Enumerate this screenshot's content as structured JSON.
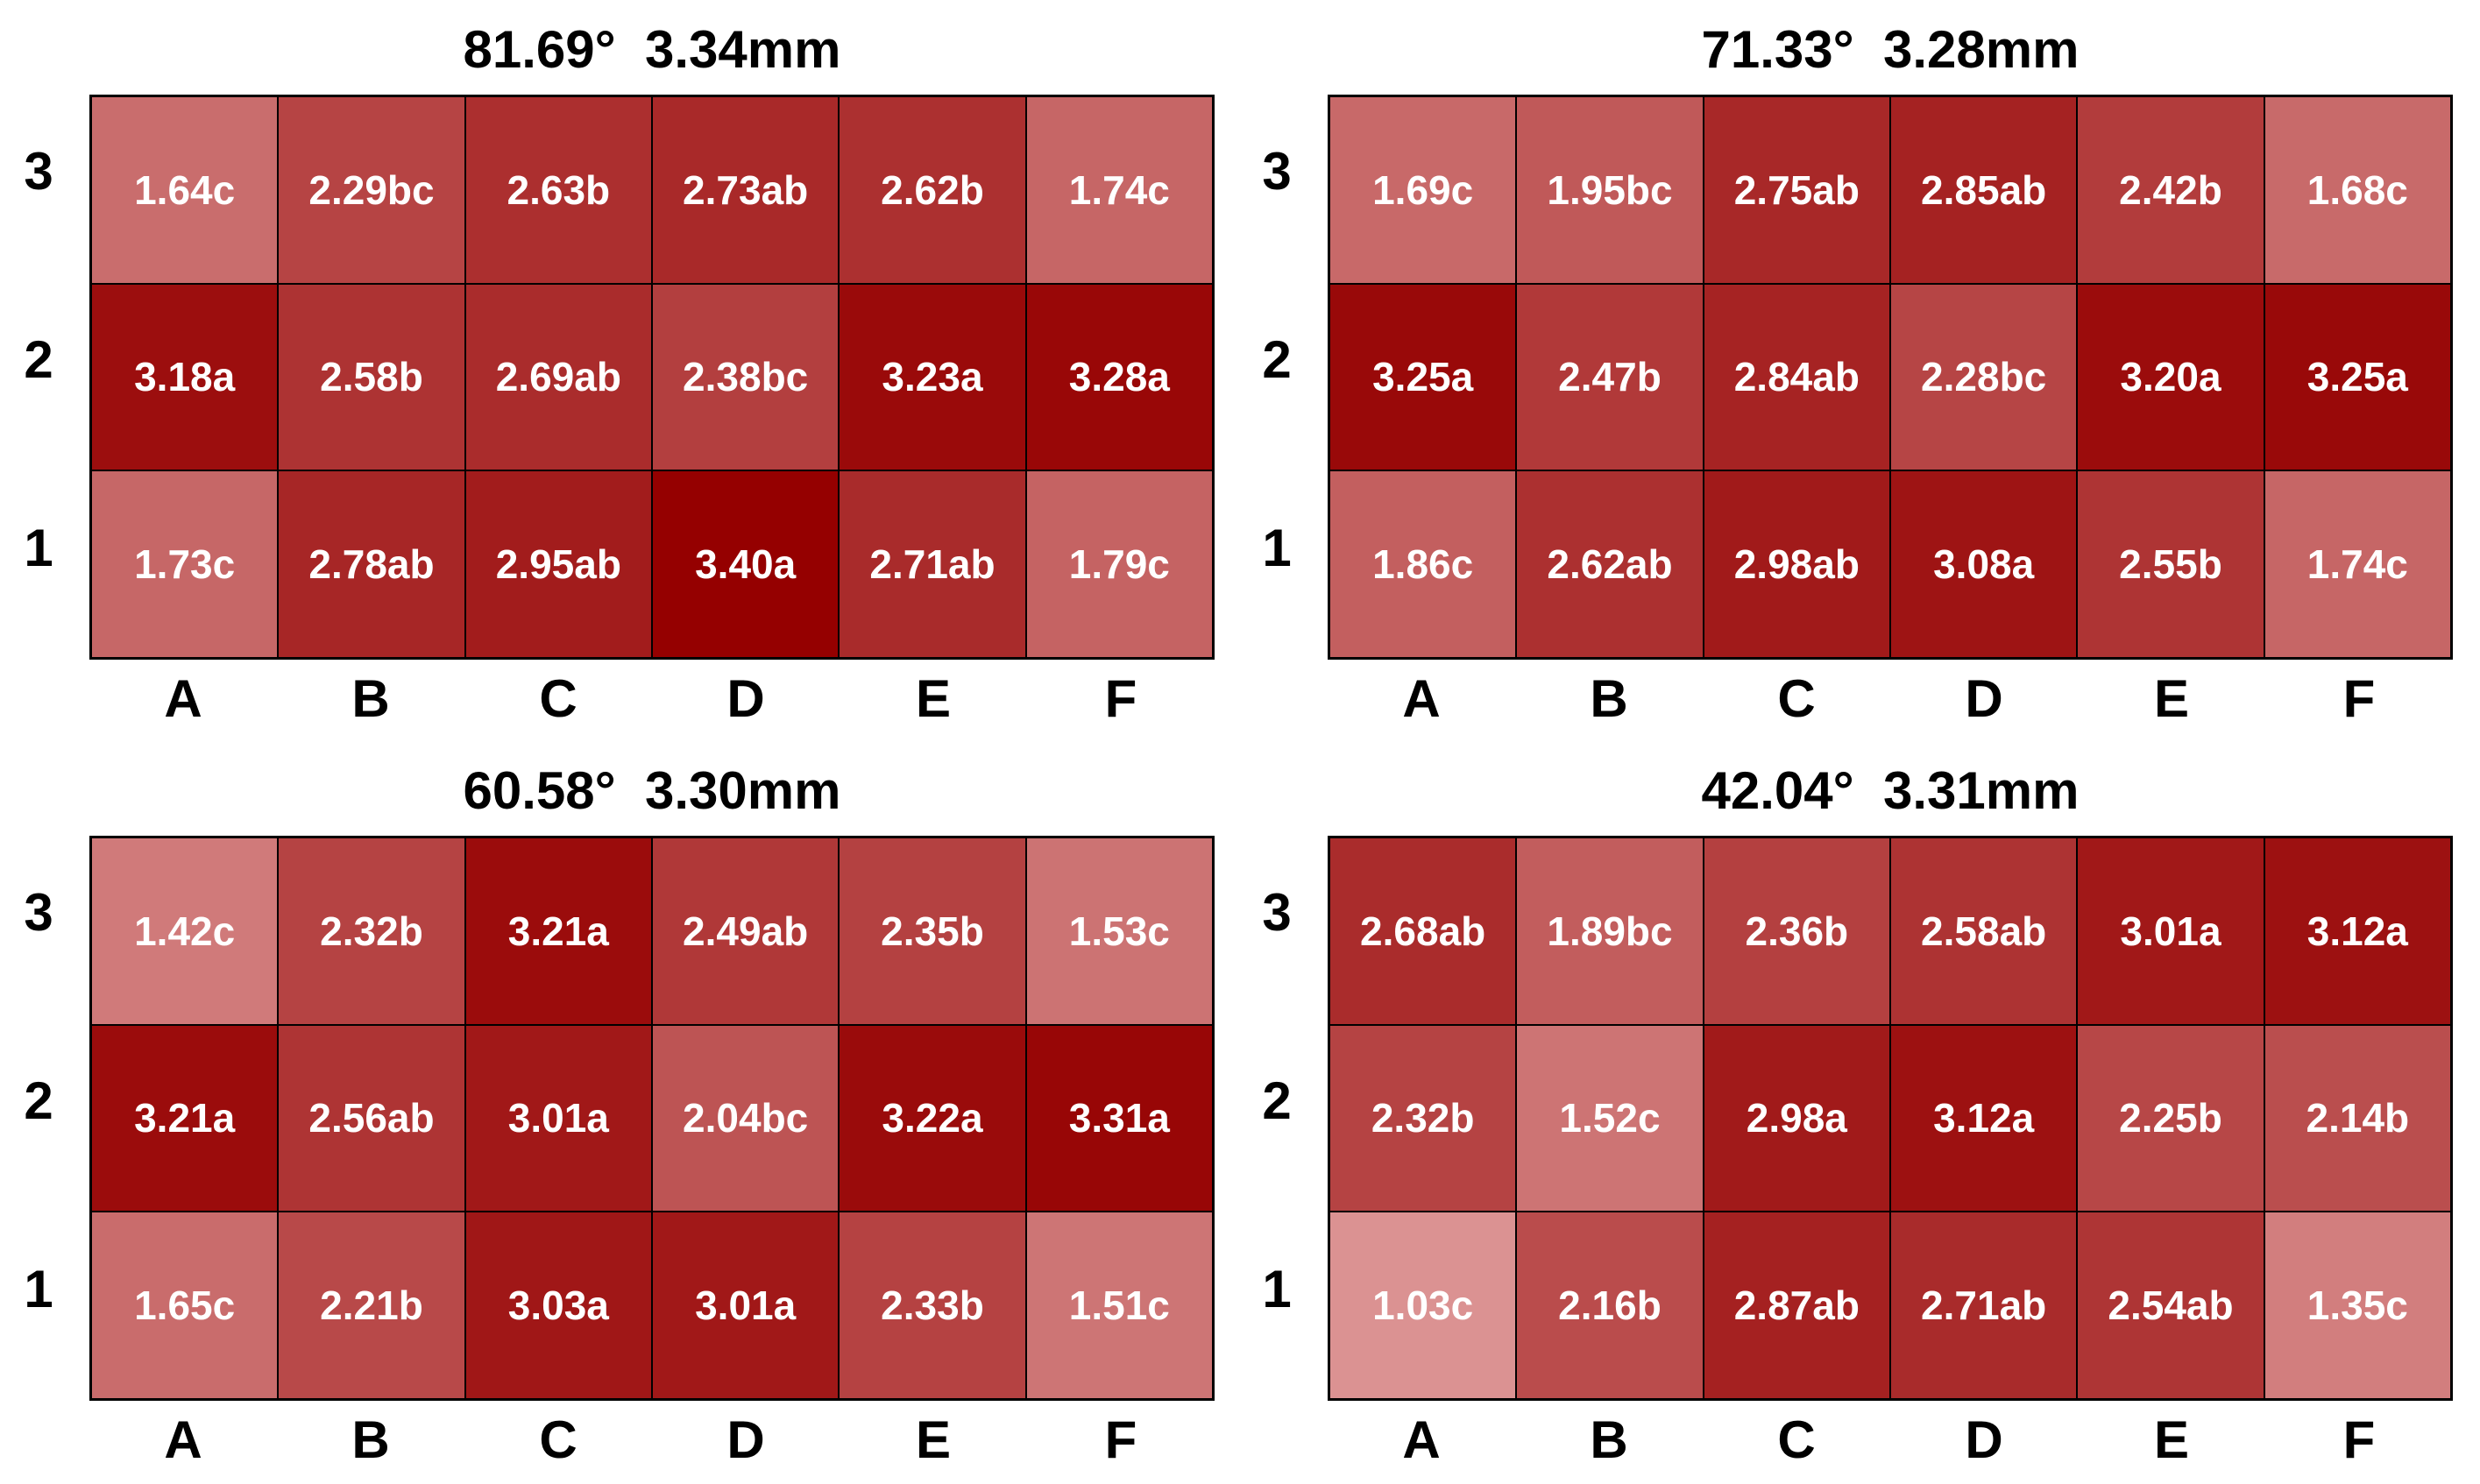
{
  "chart_data": [
    {
      "type": "heatmap",
      "title": "81.69°  3.34mm",
      "columns": [
        "A",
        "B",
        "C",
        "D",
        "E",
        "F"
      ],
      "rows": [
        "3",
        "2",
        "1"
      ],
      "values": [
        [
          1.64,
          2.29,
          2.63,
          2.73,
          2.62,
          1.74
        ],
        [
          3.18,
          2.58,
          2.69,
          2.38,
          3.23,
          3.28
        ],
        [
          1.73,
          2.78,
          2.95,
          3.4,
          2.71,
          1.79
        ]
      ],
      "labels": [
        [
          "1.64c",
          "2.29bc",
          "2.63b",
          "2.73ab",
          "2.62b",
          "1.74c"
        ],
        [
          "3.18a",
          "2.58b",
          "2.69ab",
          "2.38bc",
          "3.23a",
          "3.28a"
        ],
        [
          "1.73c",
          "2.78ab",
          "2.95ab",
          "3.40a",
          "2.71ab",
          "1.79c"
        ]
      ]
    },
    {
      "type": "heatmap",
      "title": "71.33°  3.28mm",
      "columns": [
        "A",
        "B",
        "C",
        "D",
        "E",
        "F"
      ],
      "rows": [
        "3",
        "2",
        "1"
      ],
      "values": [
        [
          1.69,
          1.95,
          2.75,
          2.85,
          2.42,
          1.68
        ],
        [
          3.25,
          2.47,
          2.84,
          2.28,
          3.2,
          3.25
        ],
        [
          1.86,
          2.62,
          2.98,
          3.08,
          2.55,
          1.74
        ]
      ],
      "labels": [
        [
          "1.69c",
          "1.95bc",
          "2.75ab",
          "2.85ab",
          "2.42b",
          "1.68c"
        ],
        [
          "3.25a",
          "2.47b",
          "2.84ab",
          "2.28bc",
          "3.20a",
          "3.25a"
        ],
        [
          "1.86c",
          "2.62ab",
          "2.98ab",
          "3.08a",
          "2.55b",
          "1.74c"
        ]
      ]
    },
    {
      "type": "heatmap",
      "title": "60.58°  3.30mm",
      "columns": [
        "A",
        "B",
        "C",
        "D",
        "E",
        "F"
      ],
      "rows": [
        "3",
        "2",
        "1"
      ],
      "values": [
        [
          1.42,
          2.32,
          3.21,
          2.49,
          2.35,
          1.53
        ],
        [
          3.21,
          2.56,
          3.01,
          2.04,
          3.22,
          3.31
        ],
        [
          1.65,
          2.21,
          3.03,
          3.01,
          2.33,
          1.51
        ]
      ],
      "labels": [
        [
          "1.42c",
          "2.32b",
          "3.21a",
          "2.49ab",
          "2.35b",
          "1.53c"
        ],
        [
          "3.21a",
          "2.56ab",
          "3.01a",
          "2.04bc",
          "3.22a",
          "3.31a"
        ],
        [
          "1.65c",
          "2.21b",
          "3.03a",
          "3.01a",
          "2.33b",
          "1.51c"
        ]
      ]
    },
    {
      "type": "heatmap",
      "title": "42.04°  3.31mm",
      "columns": [
        "A",
        "B",
        "C",
        "D",
        "E",
        "F"
      ],
      "rows": [
        "3",
        "2",
        "1"
      ],
      "values": [
        [
          2.68,
          1.89,
          2.36,
          2.58,
          3.01,
          3.12
        ],
        [
          2.32,
          1.52,
          2.98,
          3.12,
          2.25,
          2.14
        ],
        [
          1.03,
          2.16,
          2.87,
          2.71,
          2.54,
          1.35
        ]
      ],
      "labels": [
        [
          "2.68ab",
          "1.89bc",
          "2.36b",
          "2.58ab",
          "3.01a",
          "3.12a"
        ],
        [
          "2.32b",
          "1.52c",
          "2.98a",
          "3.12a",
          "2.25b",
          "2.14b"
        ],
        [
          "1.03c",
          "2.16b",
          "2.87ab",
          "2.71ab",
          "2.54ab",
          "1.35c"
        ]
      ]
    }
  ],
  "colors": {
    "low": "#dc9494",
    "high": "#950000"
  }
}
